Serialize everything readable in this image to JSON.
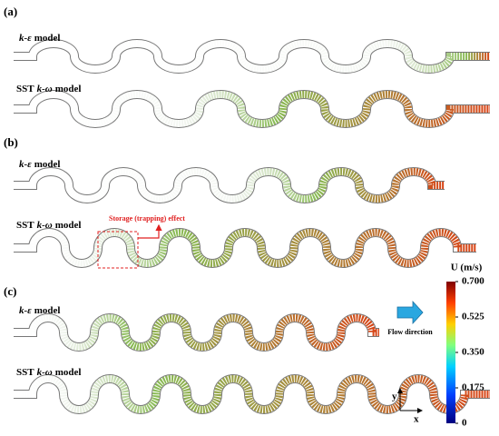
{
  "panels": [
    {
      "label": "(a)",
      "rows": [
        {
          "model": {
            "prefix": "",
            "italic": "k-ε",
            "suffix": "model"
          }
        },
        {
          "model": {
            "prefix": "SST",
            "italic": "k-ω",
            "suffix": "model"
          }
        }
      ]
    },
    {
      "label": "(b)",
      "rows": [
        {
          "model": {
            "prefix": "",
            "italic": "k-ε",
            "suffix": "model"
          }
        },
        {
          "model": {
            "prefix": "SST",
            "italic": "k-ω",
            "suffix": "model"
          }
        }
      ],
      "annotation": "Storage (trapping) effect"
    },
    {
      "label": "(c)",
      "rows": [
        {
          "model": {
            "prefix": "",
            "italic": "k-ε",
            "suffix": "model"
          }
        },
        {
          "model": {
            "prefix": "SST",
            "italic": "k-ω",
            "suffix": "model"
          }
        }
      ]
    }
  ],
  "flow_label": "Flow direction",
  "axes": {
    "x": "x",
    "y": "y"
  },
  "colorbar": {
    "title": "U (m/s)",
    "lim": [
      0,
      0.7
    ],
    "ticks": [
      0,
      0.175,
      {
        "value": 0.35,
        "label": "0.350"
      },
      0.525,
      {
        "value": 0.7,
        "label": "0.700"
      }
    ]
  }
}
